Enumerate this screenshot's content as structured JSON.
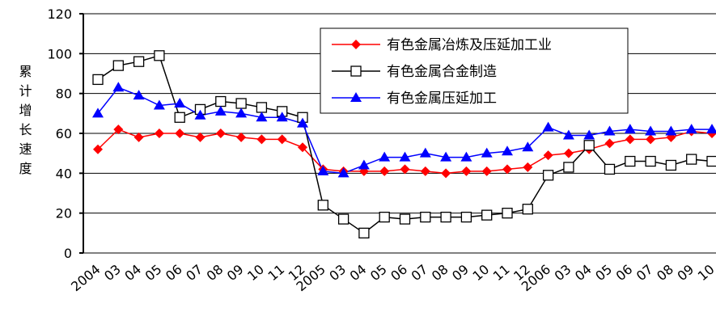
{
  "chart_data": {
    "type": "line",
    "y_label": "累计增长速度",
    "categories": [
      "2004",
      "03",
      "04",
      "05",
      "06",
      "07",
      "08",
      "09",
      "10",
      "11",
      "12",
      "2005",
      "03",
      "04",
      "05",
      "06",
      "07",
      "08",
      "09",
      "10",
      "11",
      "12",
      "2006",
      "03",
      "04",
      "05",
      "06",
      "07",
      "08",
      "09",
      "10"
    ],
    "series": [
      {
        "name": "有色金属冶炼及压延加工业",
        "color": "#ff0000",
        "marker": "diamond",
        "values": [
          52,
          62,
          58,
          60,
          60,
          58,
          60,
          58,
          57,
          57,
          53,
          42,
          41,
          41,
          41,
          42,
          41,
          40,
          41,
          41,
          42,
          43,
          49,
          50,
          52,
          55,
          57,
          57,
          58,
          61,
          60
        ]
      },
      {
        "name": "有色金属合金制造",
        "color": "#000000",
        "marker": "square",
        "values": [
          87,
          94,
          96,
          99,
          68,
          72,
          76,
          75,
          73,
          71,
          68,
          24,
          17,
          10,
          18,
          17,
          18,
          18,
          18,
          19,
          20,
          22,
          39,
          43,
          54,
          42,
          46,
          46,
          44,
          47,
          46
        ]
      },
      {
        "name": "有色金属压延加工",
        "color": "#0000ff",
        "marker": "triangle",
        "values": [
          70,
          83,
          79,
          74,
          75,
          69,
          71,
          70,
          68,
          68,
          65,
          41,
          40,
          44,
          48,
          48,
          50,
          48,
          48,
          50,
          51,
          53,
          63,
          59,
          59,
          61,
          62,
          61,
          61,
          62,
          62
        ]
      }
    ],
    "ylim": [
      0,
      120
    ],
    "yticks": [
      0,
      20,
      40,
      60,
      80,
      100,
      120
    ],
    "grid": true
  }
}
